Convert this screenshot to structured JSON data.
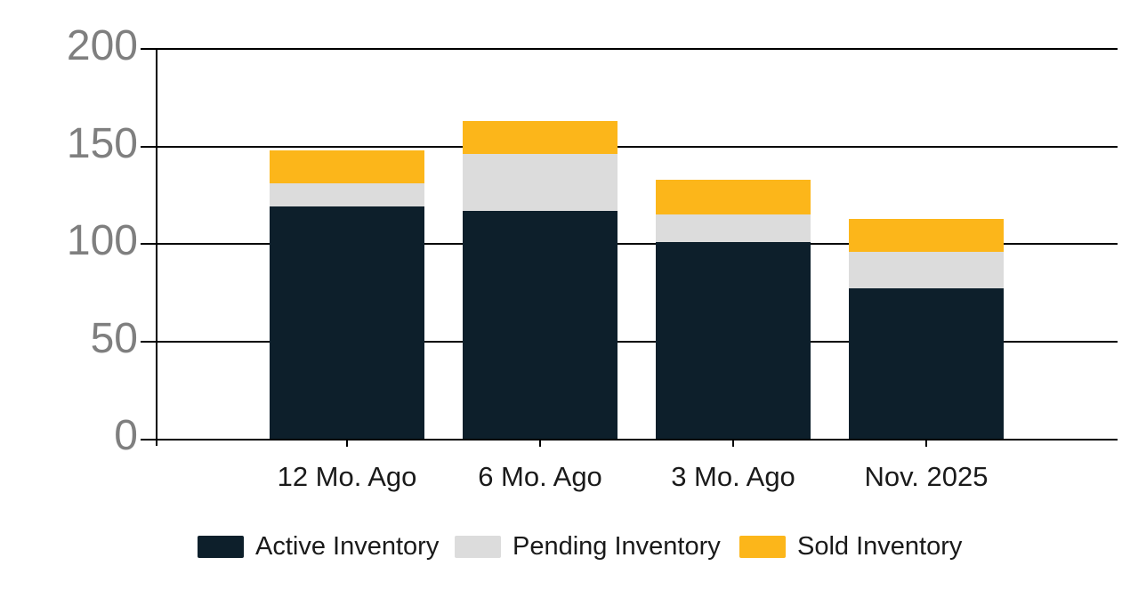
{
  "chart_data": {
    "type": "bar",
    "stacked": true,
    "title": "",
    "xlabel": "",
    "ylabel": "",
    "categories": [
      "12 Mo. Ago",
      "6 Mo. Ago",
      "3 Mo. Ago",
      "Nov. 2025"
    ],
    "series": [
      {
        "name": "Active Inventory",
        "color": "#0d1f2b",
        "values": [
          119,
          117,
          101,
          77
        ]
      },
      {
        "name": "Pending Inventory",
        "color": "#dcdcdc",
        "values": [
          12,
          29,
          14,
          19
        ]
      },
      {
        "name": "Sold Inventory",
        "color": "#fcb61a",
        "values": [
          17,
          17,
          18,
          17
        ]
      }
    ],
    "stack_totals": [
      148,
      163,
      133,
      113
    ],
    "ylim": [
      0,
      200
    ],
    "y_ticks": [
      {
        "value": 0,
        "label": "0"
      },
      {
        "value": 50,
        "label": "50"
      },
      {
        "value": 100,
        "label": "100"
      },
      {
        "value": 150,
        "label": "150"
      },
      {
        "value": 200,
        "label": "200"
      }
    ],
    "grid": "horizontal",
    "legend_position": "bottom"
  },
  "colors": {
    "background": "#ffffff",
    "gridline": "#000000",
    "axis_line": "#000000",
    "y_tick_label": "#7f7f7f",
    "x_tick_label": "#1a1a1a",
    "legend_text": "#1a1a1a"
  }
}
